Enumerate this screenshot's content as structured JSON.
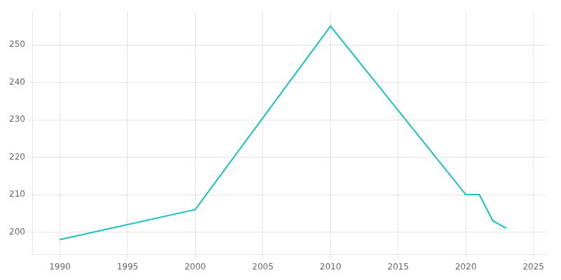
{
  "chart_data": {
    "type": "line",
    "x": [
      1990,
      2000,
      2010,
      2020,
      2021,
      2022,
      2023
    ],
    "values": [
      198,
      206,
      255,
      210,
      210,
      203,
      201
    ],
    "color": "#17c0c0",
    "xlim": [
      1988,
      2026
    ],
    "ylim": [
      194,
      259
    ],
    "xticks": [
      1990,
      1995,
      2000,
      2005,
      2010,
      2015,
      2020,
      2025
    ],
    "yticks": [
      200,
      210,
      220,
      230,
      240,
      250
    ],
    "grid": true
  }
}
